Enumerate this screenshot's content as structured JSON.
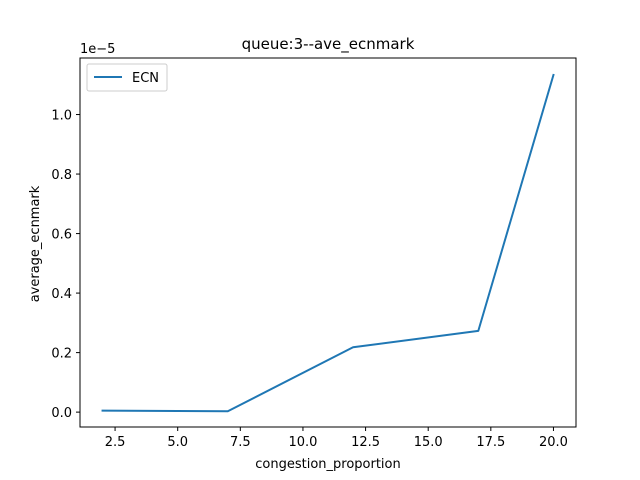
{
  "chart_data": {
    "type": "line",
    "title": "queue:3--ave_ecnmark",
    "xlabel": "congestion_proportion",
    "ylabel": "average_ecnmark",
    "y_multiplier_label": "1e−5",
    "xlim": [
      1.1,
      20.9
    ],
    "ylim": [
      -0.05,
      1.19
    ],
    "x_ticks": [
      2.5,
      5.0,
      7.5,
      10.0,
      12.5,
      15.0,
      17.5,
      20.0
    ],
    "x_tick_labels": [
      "2.5",
      "5.0",
      "7.5",
      "10.0",
      "12.5",
      "15.0",
      "17.5",
      "20.0"
    ],
    "y_ticks": [
      0.0,
      0.2,
      0.4,
      0.6,
      0.8,
      1.0
    ],
    "y_tick_labels": [
      "0.0",
      "0.2",
      "0.4",
      "0.6",
      "0.8",
      "1.0"
    ],
    "grid": false,
    "legend_position": "top-left",
    "colors": {
      "series": "#1f77b4",
      "axes": "#000000"
    },
    "series": [
      {
        "name": "ECN",
        "x": [
          2,
          7,
          12,
          17,
          20
        ],
        "y": [
          0.005,
          0.003,
          0.218,
          0.273,
          1.133
        ]
      }
    ]
  }
}
